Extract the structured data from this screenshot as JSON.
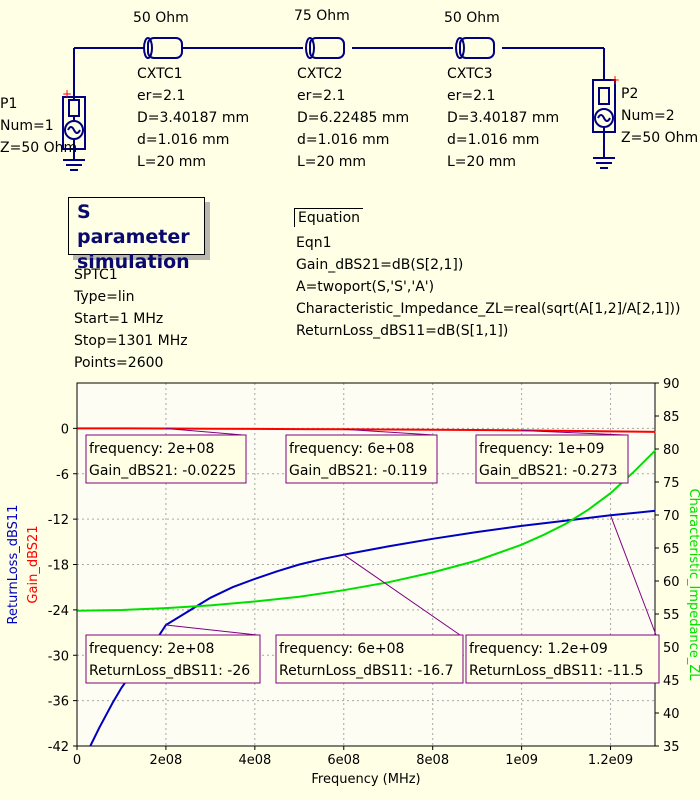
{
  "schematic": {
    "lines": [
      {
        "label": "50 Ohm",
        "name": "CXTC1",
        "er": "er=2.1",
        "D": "D=3.40187 mm",
        "d": "d=1.016 mm",
        "L": "L=20 mm"
      },
      {
        "label": "75 Ohm",
        "name": "CXTC2",
        "er": "er=2.1",
        "D": "D=6.22485 mm",
        "d": "d=1.016 mm",
        "L": "L=20 mm"
      },
      {
        "label": "50 Ohm",
        "name": "CXTC3",
        "er": "er=2.1",
        "D": "D=3.40187 mm",
        "d": "d=1.016 mm",
        "L": "L=20 mm"
      }
    ],
    "ports": [
      {
        "name": "P1",
        "num": "Num=1",
        "z": "Z=50 Ohm"
      },
      {
        "name": "P2",
        "num": "Num=2",
        "z": "Z=50 Ohm"
      }
    ],
    "simulation": {
      "box_line1": "S parameter",
      "box_line2": "simulation",
      "name": "SPTC1",
      "type": "Type=lin",
      "start": "Start=1 MHz",
      "stop": "Stop=1301 MHz",
      "points": "Points=2600"
    },
    "equation": {
      "header": "Equation",
      "name": "Eqn1",
      "lines": [
        "Gain_dBS21=dB(S[2,1])",
        "A=twoport(S,'S','A')",
        "Characteristic_Impedance_ZL=real(sqrt(A[1,2]/A[2,1]))",
        "ReturnLoss_dBS11=dB(S[1,1])"
      ]
    }
  },
  "chart_data": {
    "type": "line",
    "xlabel": "Frequency (MHz)",
    "ylabel_left": [
      "ReturnLoss_dBS11",
      "Gain_dBS21"
    ],
    "ylabel_right": "Characteristic_Impedance_ZL",
    "xlim": [
      0,
      1300000000
    ],
    "ylim_left": [
      -42,
      6
    ],
    "ylim_right": [
      35,
      90
    ],
    "x_ticks": [
      "0",
      "2e08",
      "4e08",
      "6e08",
      "8e08",
      "1e09",
      "1.2e09"
    ],
    "x_tick_values": [
      0,
      200000000,
      400000000,
      600000000,
      800000000,
      1000000000,
      1200000000
    ],
    "y_left_ticks": [
      0,
      -6,
      -12,
      -18,
      -24,
      -30,
      -36,
      -42
    ],
    "y_right_ticks": [
      90,
      85,
      80,
      75,
      70,
      65,
      60,
      55,
      50,
      45,
      40,
      35
    ],
    "colors": {
      "gain": "#ff0000",
      "return_loss": "#0000c0",
      "impedance": "#00e000",
      "marker": "#800080"
    },
    "series": [
      {
        "name": "Gain_dBS21",
        "axis": "left",
        "x": [
          1000000,
          100000000,
          200000000,
          300000000,
          400000000,
          500000000,
          600000000,
          700000000,
          800000000,
          900000000,
          1000000000,
          1100000000,
          1200000000,
          1301000000
        ],
        "y": [
          0,
          -0.006,
          -0.0225,
          -0.045,
          -0.065,
          -0.09,
          -0.119,
          -0.15,
          -0.18,
          -0.22,
          -0.273,
          -0.33,
          -0.4,
          -0.46
        ]
      },
      {
        "name": "ReturnLoss_dBS11",
        "axis": "left",
        "x": [
          30000000,
          50000000,
          80000000,
          100000000,
          130000000,
          160000000,
          200000000,
          250000000,
          300000000,
          350000000,
          400000000,
          450000000,
          500000000,
          550000000,
          600000000,
          700000000,
          800000000,
          900000000,
          1000000000,
          1100000000,
          1200000000,
          1301000000
        ],
        "y": [
          -42,
          -39.6,
          -36.3,
          -34.3,
          -31.8,
          -29.6,
          -26,
          -24.2,
          -22.4,
          -21.0,
          -19.9,
          -18.9,
          -18.0,
          -17.3,
          -16.7,
          -15.6,
          -14.6,
          -13.7,
          -12.9,
          -12.2,
          -11.5,
          -10.9
        ]
      },
      {
        "name": "Characteristic_Impedance_ZL",
        "axis": "right",
        "x": [
          1000000,
          100000000,
          200000000,
          300000000,
          400000000,
          500000000,
          600000000,
          700000000,
          800000000,
          900000000,
          1000000000,
          1050000000,
          1100000000,
          1150000000,
          1200000000,
          1250000000,
          1301000000
        ],
        "y": [
          55.5,
          55.6,
          55.9,
          56.3,
          56.9,
          57.6,
          58.6,
          59.8,
          61.3,
          63.1,
          65.5,
          67.0,
          68.7,
          70.8,
          73.3,
          76.4,
          79.8
        ]
      }
    ],
    "markers": [
      {
        "series": "Gain_dBS21",
        "x": 200000000,
        "label1": "frequency: 2e+08",
        "label2": "Gain_dBS21: -0.0225"
      },
      {
        "series": "Gain_dBS21",
        "x": 600000000,
        "label1": "frequency: 6e+08",
        "label2": "Gain_dBS21: -0.119"
      },
      {
        "series": "Gain_dBS21",
        "x": 1000000000,
        "label1": "frequency: 1e+09",
        "label2": "Gain_dBS21: -0.273"
      },
      {
        "series": "ReturnLoss_dBS11",
        "x": 200000000,
        "label1": "frequency: 2e+08",
        "label2": "ReturnLoss_dBS11: -26"
      },
      {
        "series": "ReturnLoss_dBS11",
        "x": 600000000,
        "label1": "frequency: 6e+08",
        "label2": "ReturnLoss_dBS11: -16.7"
      },
      {
        "series": "ReturnLoss_dBS11",
        "x": 1200000000,
        "label1": "frequency: 1.2e+09",
        "label2": "ReturnLoss_dBS11: -11.5"
      }
    ]
  }
}
